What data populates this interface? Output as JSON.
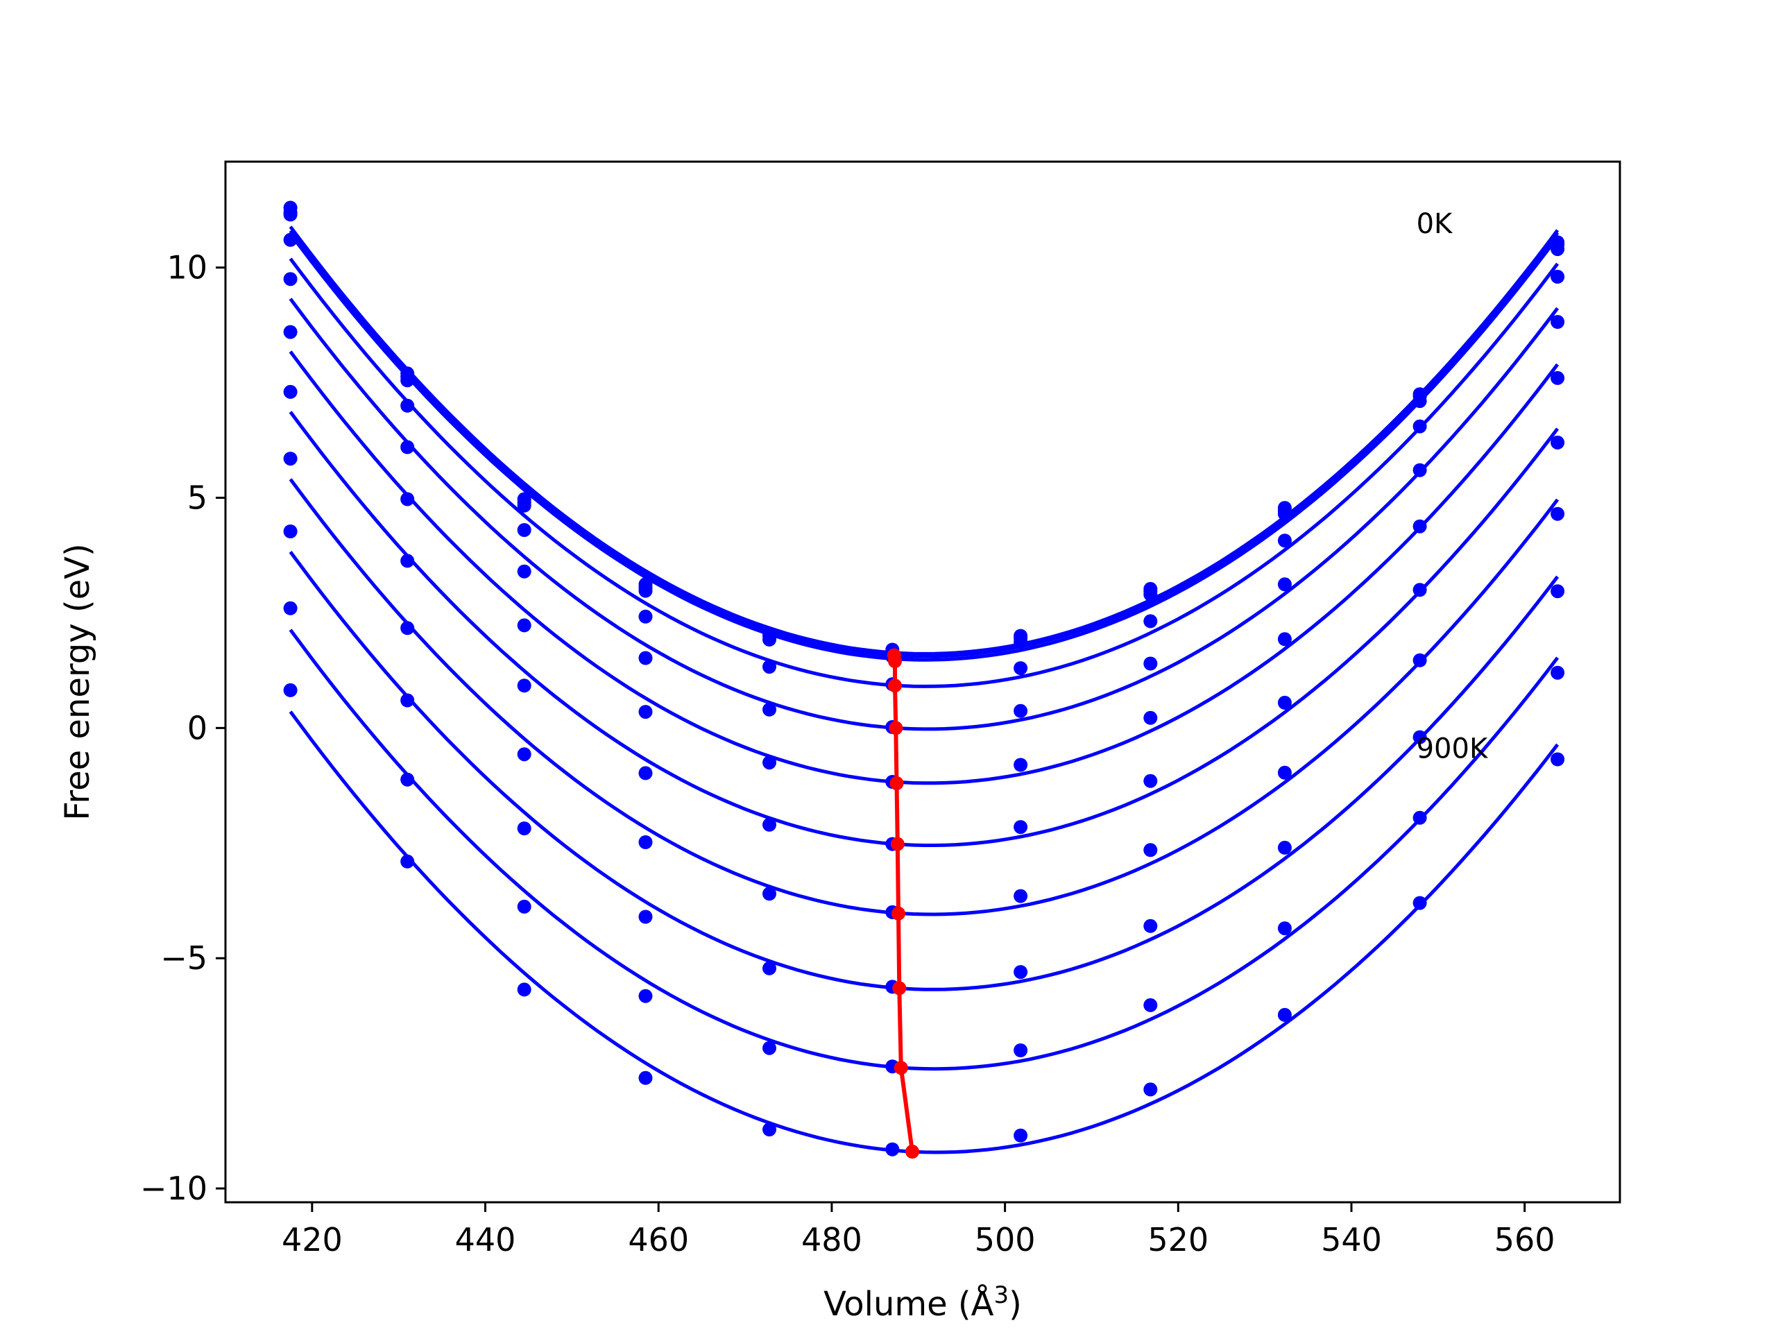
{
  "chart_data": {
    "type": "line",
    "xlabel": "Volume (Å",
    "xlabel_superscript": "3",
    "xlabel_suffix": ")",
    "ylabel": "Free energy (eV)",
    "xlim": [
      410,
      571
    ],
    "ylim": [
      -10.3,
      12.3
    ],
    "x_ticks": [
      420,
      440,
      460,
      480,
      500,
      520,
      540,
      560
    ],
    "x_tick_labels": [
      "420",
      "440",
      "460",
      "480",
      "500",
      "520",
      "540",
      "560"
    ],
    "y_ticks": [
      -10,
      -5,
      0,
      5,
      10
    ],
    "y_tick_labels": [
      "−10",
      "−5",
      "0",
      "5",
      "10"
    ],
    "grid": false,
    "legend": "none",
    "curve_color": "#0000ff",
    "min_line_color": "#ff0000",
    "annotations": [
      {
        "text": "0K",
        "x": 547.5,
        "y": 10.75
      },
      {
        "text": "900K",
        "x": 547.5,
        "y": -0.65
      }
    ],
    "x": [
      417.5,
      431.0,
      444.5,
      458.5,
      472.8,
      487.0,
      501.8,
      516.8,
      532.3,
      547.9,
      563.8
    ],
    "series": [
      {
        "points": [
          11.3,
          7.7,
          4.97,
          3.12,
          2.05,
          1.7,
          2.0,
          3.02,
          4.78,
          7.25,
          10.55
        ]
      },
      {
        "points": [
          11.2,
          7.63,
          4.9,
          3.05,
          2.0,
          1.62,
          1.95,
          2.97,
          4.72,
          7.2,
          10.5
        ]
      },
      {
        "points": [
          11.15,
          7.55,
          4.83,
          2.98,
          1.92,
          1.55,
          1.87,
          2.9,
          4.65,
          7.1,
          10.4
        ]
      },
      {
        "points": [
          10.6,
          7.0,
          4.3,
          2.42,
          1.33,
          0.95,
          1.3,
          2.32,
          4.07,
          6.55,
          9.8
        ]
      },
      {
        "points": [
          9.75,
          6.1,
          3.4,
          1.52,
          0.4,
          0.02,
          0.37,
          1.4,
          3.12,
          5.6,
          8.82
        ]
      },
      {
        "points": [
          8.6,
          4.97,
          2.23,
          0.35,
          -0.75,
          -1.17,
          -0.8,
          0.22,
          1.93,
          4.38,
          7.6
        ]
      },
      {
        "points": [
          7.3,
          3.63,
          0.92,
          -0.98,
          -2.1,
          -2.52,
          -2.15,
          -1.15,
          0.55,
          3.0,
          6.2
        ]
      },
      {
        "points": [
          5.85,
          2.17,
          -0.57,
          -2.48,
          -3.6,
          -4.0,
          -3.65,
          -2.65,
          -0.97,
          1.47,
          4.65
        ]
      },
      {
        "points": [
          4.27,
          0.6,
          -2.18,
          -4.1,
          -5.22,
          -5.62,
          -5.3,
          -4.3,
          -2.6,
          -0.2,
          2.97
        ]
      },
      {
        "points": [
          2.6,
          -1.12,
          -3.88,
          -5.82,
          -6.95,
          -7.35,
          -7.0,
          -6.02,
          -4.35,
          -1.95,
          1.2
        ]
      },
      {
        "points": [
          0.82,
          -2.9,
          -5.68,
          -7.6,
          -8.72,
          -9.15,
          -8.85,
          -7.85,
          -6.23,
          -3.8,
          -0.68
        ]
      }
    ],
    "minimum_points": [
      {
        "x": 487.2,
        "y": 1.58
      },
      {
        "x": 487.3,
        "y": 1.45
      },
      {
        "x": 487.3,
        "y": 0.92
      },
      {
        "x": 487.4,
        "y": 0.0
      },
      {
        "x": 487.5,
        "y": -1.2
      },
      {
        "x": 487.6,
        "y": -2.52
      },
      {
        "x": 487.7,
        "y": -4.03
      },
      {
        "x": 487.8,
        "y": -5.65
      },
      {
        "x": 488.0,
        "y": -7.38
      },
      {
        "x": 489.3,
        "y": -9.2
      }
    ]
  }
}
